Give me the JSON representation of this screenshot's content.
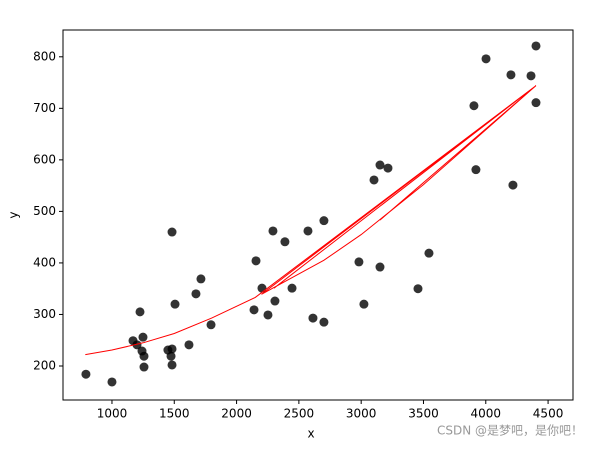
{
  "chart_data": {
    "type": "scatter",
    "xlabel": "x",
    "ylabel": "y",
    "color": "#000000",
    "x": [
      791,
      1000,
      1169,
      1201,
      1225,
      1249,
      1241,
      1257,
      1257,
      1449,
      1482,
      1474,
      1482,
      1482,
      1506,
      1618,
      1674,
      1714,
      1795,
      2140,
      2156,
      2204,
      2252,
      2292,
      2308,
      2388,
      2445,
      2573,
      2613,
      2701,
      2701,
      2982,
      3022,
      3103,
      3151,
      3215,
      3151,
      3456,
      3544,
      3905,
      3921,
      4002,
      4202,
      4218,
      4363,
      4403,
      4403
    ],
    "y": [
      184,
      169,
      249,
      241,
      305,
      256,
      229,
      219,
      198,
      231,
      233,
      219,
      202,
      460,
      320,
      241,
      340,
      369,
      280,
      309,
      404,
      351,
      299,
      462,
      326,
      441,
      351,
      462,
      293,
      482,
      285,
      402,
      320,
      561,
      590,
      584,
      392,
      350,
      419,
      705,
      581,
      796,
      765,
      551,
      763,
      821,
      711
    ],
    "line": {
      "color": "#ff0000",
      "x": [
        786,
        1000,
        1250,
        1500,
        1800,
        2150,
        4403,
        2200,
        2700,
        3000,
        3500,
        4403,
        2300,
        4403,
        3150,
        4403
      ],
      "y": [
        222,
        231,
        245,
        263,
        293,
        333,
        744,
        339,
        405,
        455,
        552,
        744,
        351,
        744,
        483,
        744
      ]
    },
    "xlim": [
      607,
      4700
    ],
    "ylim": [
      134,
      852
    ],
    "xticks": [
      1000,
      1500,
      2000,
      2500,
      3000,
      3500,
      4000,
      4500
    ],
    "yticks": [
      200,
      300,
      400,
      500,
      600,
      700,
      800
    ],
    "grid": false
  },
  "watermark": "CSDN @是梦吧，是你吧！"
}
